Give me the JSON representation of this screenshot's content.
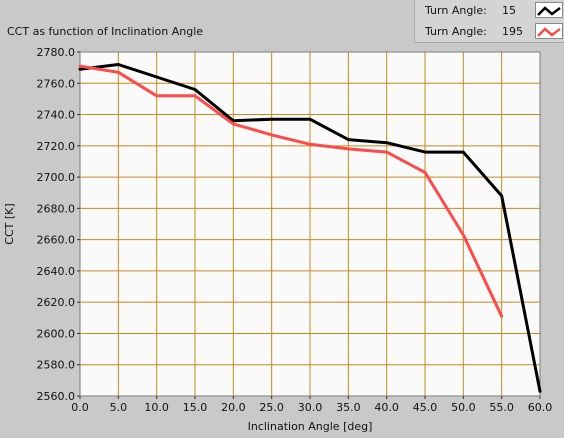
{
  "chart_data": {
    "type": "line",
    "title": "CCT as function of Inclination Angle",
    "xlabel": "Inclination Angle [deg]",
    "ylabel": "CCT [K]",
    "xlim": [
      0,
      60
    ],
    "ylim": [
      2560,
      2780
    ],
    "x_ticks": [
      0,
      5,
      10,
      15,
      20,
      25,
      30,
      35,
      40,
      45,
      50,
      55,
      60
    ],
    "x_tick_labels": [
      "0.0",
      "5.0",
      "10.0",
      "15.0",
      "20.0",
      "25.0",
      "30.0",
      "35.0",
      "40.0",
      "45.0",
      "50.0",
      "55.0",
      "60.0"
    ],
    "y_ticks": [
      2560,
      2580,
      2600,
      2620,
      2640,
      2660,
      2680,
      2700,
      2720,
      2740,
      2760,
      2780
    ],
    "y_tick_labels": [
      "2560.0",
      "2580.0",
      "2600.0",
      "2620.0",
      "2640.0",
      "2660.0",
      "2680.0",
      "2700.0",
      "2720.0",
      "2740.0",
      "2760.0",
      "2780.0"
    ],
    "grid": true,
    "legend_position": "top-right",
    "series": [
      {
        "label": "Turn Angle:",
        "name": "15",
        "color": "#000000",
        "x": [
          0,
          5,
          10,
          15,
          20,
          25,
          30,
          35,
          40,
          45,
          50,
          55,
          60
        ],
        "y": [
          2769,
          2772,
          2764,
          2756,
          2736,
          2737,
          2737,
          2724,
          2722,
          2716,
          2716,
          2688,
          2563
        ]
      },
      {
        "label": "Turn Angle:",
        "name": "195",
        "color": "#ff4a4a",
        "x": [
          0,
          5,
          10,
          15,
          20,
          25,
          30,
          35,
          40,
          45,
          50,
          55
        ],
        "y": [
          2771,
          2767,
          2752,
          2752,
          2734,
          2727,
          2721,
          2718,
          2716,
          2703,
          2663,
          2611
        ]
      }
    ]
  },
  "colors": {
    "plot_background": "#fafafa",
    "grid": "#c58a1e",
    "panel": "#c9c9c9"
  }
}
